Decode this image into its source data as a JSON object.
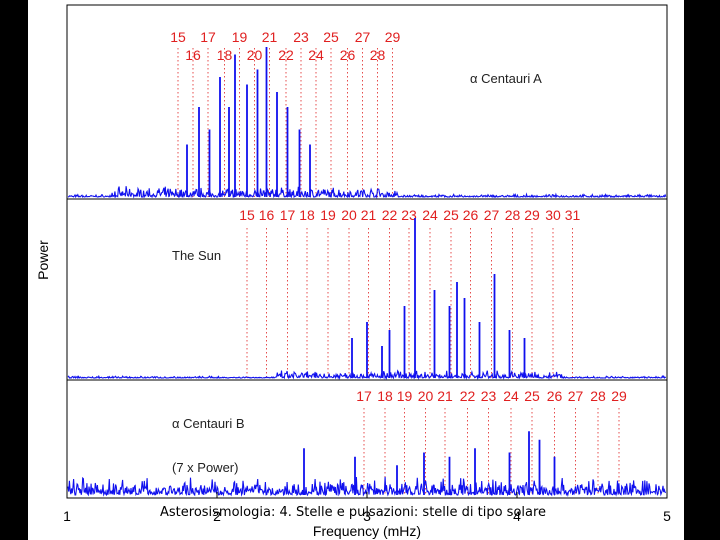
{
  "footer": "Asterosismologia: 4. Stelle e pulsazioni: stelle di tipo solare",
  "chart_data": {
    "type": "line",
    "xlabel": "Frequency (mHz)",
    "ylabel": "Power",
    "xlim": [
      1,
      5
    ],
    "x_ticks": [
      "1",
      "2",
      "3",
      "4",
      "5"
    ],
    "colors": {
      "series": "#1010ee",
      "mode_markers": "#e02020"
    },
    "panels": [
      {
        "label": "α Centauri A",
        "mode_orders_upper": [
          "15",
          "17",
          "19",
          "21",
          "23",
          "25",
          "27",
          "29"
        ],
        "mode_orders_lower": [
          "16",
          "18",
          "20",
          "22",
          "24",
          "26",
          "28"
        ],
        "mode_freqs_mHz": [
          1.74,
          1.84,
          1.94,
          2.05,
          2.15,
          2.25,
          2.35,
          2.46,
          2.56,
          2.66,
          2.76,
          2.87,
          2.97,
          3.07,
          3.17
        ],
        "peaks": [
          [
            1.8,
            0.35
          ],
          [
            1.88,
            0.6
          ],
          [
            1.95,
            0.45
          ],
          [
            2.02,
            0.8
          ],
          [
            2.08,
            0.6
          ],
          [
            2.12,
            0.95
          ],
          [
            2.2,
            0.75
          ],
          [
            2.27,
            0.85
          ],
          [
            2.33,
            1.0
          ],
          [
            2.4,
            0.7
          ],
          [
            2.47,
            0.6
          ],
          [
            2.55,
            0.45
          ],
          [
            2.62,
            0.35
          ]
        ]
      },
      {
        "label": "The Sun",
        "mode_orders": [
          "15",
          "16",
          "17",
          "18",
          "19",
          "20",
          "21",
          "22",
          "23",
          "24",
          "25",
          "26",
          "27",
          "28",
          "29",
          "30",
          "31"
        ],
        "mode_freqs_mHz": [
          2.2,
          2.33,
          2.47,
          2.6,
          2.74,
          2.88,
          3.01,
          3.15,
          3.28,
          3.42,
          3.56,
          3.69,
          3.83,
          3.97,
          4.1,
          4.24,
          4.37
        ],
        "peaks": [
          [
            2.9,
            0.25
          ],
          [
            3.0,
            0.35
          ],
          [
            3.1,
            0.2
          ],
          [
            3.15,
            0.3
          ],
          [
            3.25,
            0.45
          ],
          [
            3.32,
            1.0
          ],
          [
            3.45,
            0.55
          ],
          [
            3.55,
            0.45
          ],
          [
            3.6,
            0.6
          ],
          [
            3.65,
            0.5
          ],
          [
            3.75,
            0.35
          ],
          [
            3.85,
            0.65
          ],
          [
            3.95,
            0.3
          ],
          [
            4.05,
            0.25
          ]
        ]
      },
      {
        "label": "α Centauri B",
        "note": "(7 x Power)",
        "mode_orders": [
          "17",
          "18",
          "19",
          "20",
          "21",
          "22",
          "23",
          "24",
          "25",
          "26",
          "27",
          "28",
          "29"
        ],
        "mode_freqs_mHz": [
          2.98,
          3.12,
          3.25,
          3.39,
          3.52,
          3.67,
          3.81,
          3.96,
          4.1,
          4.25,
          4.39,
          4.54,
          4.68
        ],
        "peaks": [
          [
            2.58,
            0.55
          ],
          [
            2.92,
            0.45
          ],
          [
            3.2,
            0.35
          ],
          [
            3.38,
            0.5
          ],
          [
            3.55,
            0.45
          ],
          [
            3.72,
            0.55
          ],
          [
            3.95,
            0.5
          ],
          [
            4.08,
            0.75
          ],
          [
            4.15,
            0.65
          ],
          [
            4.25,
            0.45
          ]
        ]
      }
    ]
  }
}
